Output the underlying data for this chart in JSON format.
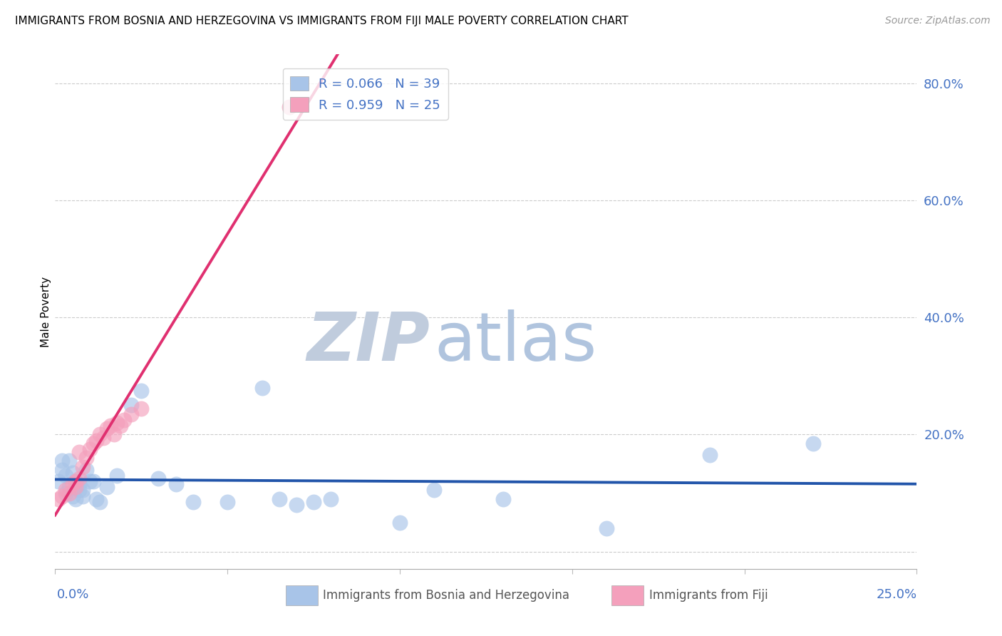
{
  "title": "IMMIGRANTS FROM BOSNIA AND HERZEGOVINA VS IMMIGRANTS FROM FIJI MALE POVERTY CORRELATION CHART",
  "source": "Source: ZipAtlas.com",
  "ylabel": "Male Poverty",
  "xmin": 0.0,
  "xmax": 0.25,
  "ymin": -0.03,
  "ymax": 0.85,
  "bosnia_color": "#a8c4e8",
  "fiji_color": "#f4a0bc",
  "bosnia_line_color": "#2255aa",
  "fiji_line_color": "#e03070",
  "legend_r_bosnia": "R = 0.066",
  "legend_n_bosnia": "N = 39",
  "legend_r_fiji": "R = 0.959",
  "legend_n_fiji": "N = 25",
  "legend_bosnia_label": "Immigrants from Bosnia and Herzegovina",
  "legend_fiji_label": "Immigrants from Fiji",
  "watermark_zip": "ZIP",
  "watermark_atlas": "atlas",
  "watermark_zip_color": "#c0ccdd",
  "watermark_atlas_color": "#b8cce4",
  "ytick_vals": [
    0.0,
    0.2,
    0.4,
    0.6,
    0.8
  ],
  "ytick_labels": [
    "",
    "20.0%",
    "40.0%",
    "60.0%",
    "80.0%"
  ],
  "bosnia_x": [
    0.001,
    0.002,
    0.002,
    0.003,
    0.003,
    0.004,
    0.004,
    0.005,
    0.005,
    0.006,
    0.006,
    0.007,
    0.007,
    0.008,
    0.008,
    0.009,
    0.01,
    0.011,
    0.012,
    0.013,
    0.015,
    0.018,
    0.022,
    0.025,
    0.03,
    0.035,
    0.04,
    0.05,
    0.06,
    0.065,
    0.07,
    0.075,
    0.08,
    0.1,
    0.11,
    0.13,
    0.16,
    0.19,
    0.22
  ],
  "bosnia_y": [
    0.12,
    0.14,
    0.155,
    0.1,
    0.13,
    0.11,
    0.155,
    0.135,
    0.095,
    0.12,
    0.09,
    0.105,
    0.115,
    0.095,
    0.105,
    0.14,
    0.12,
    0.12,
    0.09,
    0.085,
    0.11,
    0.13,
    0.25,
    0.275,
    0.125,
    0.115,
    0.085,
    0.085,
    0.28,
    0.09,
    0.08,
    0.085,
    0.09,
    0.05,
    0.105,
    0.09,
    0.04,
    0.165,
    0.185
  ],
  "fiji_x": [
    0.001,
    0.002,
    0.003,
    0.004,
    0.005,
    0.006,
    0.006,
    0.007,
    0.007,
    0.008,
    0.009,
    0.01,
    0.011,
    0.012,
    0.013,
    0.014,
    0.015,
    0.016,
    0.017,
    0.018,
    0.019,
    0.02,
    0.022,
    0.025,
    0.068
  ],
  "fiji_y": [
    0.09,
    0.095,
    0.105,
    0.1,
    0.115,
    0.11,
    0.12,
    0.125,
    0.17,
    0.145,
    0.16,
    0.175,
    0.185,
    0.19,
    0.2,
    0.195,
    0.21,
    0.215,
    0.2,
    0.22,
    0.215,
    0.225,
    0.235,
    0.245,
    0.76
  ]
}
